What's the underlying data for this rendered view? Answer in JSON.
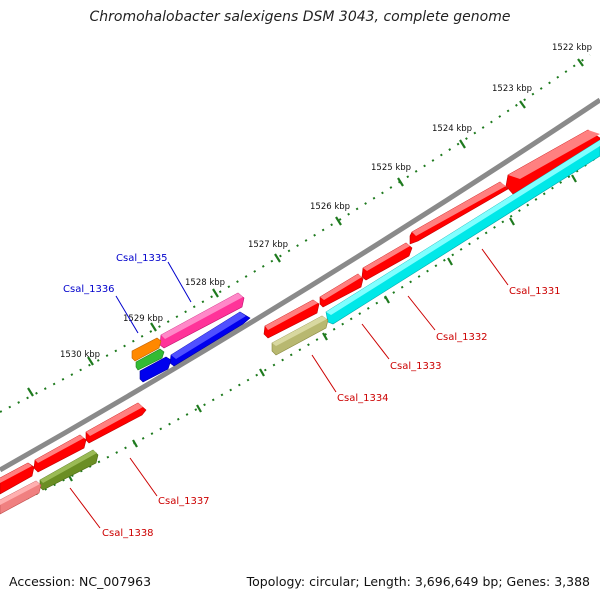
{
  "header": {
    "title": "Chromohalobacter salexigens DSM 3043, complete genome"
  },
  "footer": {
    "accession": "Accession: NC_007963",
    "summary": "Topology: circular; Length: 3,696,649 bp; Genes: 3,388"
  },
  "colors": {
    "backbone": "#8a8a8a",
    "ticks": "#1e7a1e",
    "forward_gene": "#ff0000",
    "reverse_gene": "#00e8e8",
    "forward_label": "#cc0000",
    "reverse_label": "#0000cc"
  },
  "scale_labels": [
    "1522 kbp",
    "1523 kbp",
    "1524 kbp",
    "1525 kbp",
    "1526 kbp",
    "1527 kbp",
    "1528 kbp",
    "1529 kbp",
    "1530 kbp"
  ],
  "gene_labels": [
    "Csal_1331",
    "Csal_1332",
    "Csal_1333",
    "Csal_1334",
    "Csal_1335",
    "Csal_1336",
    "Csal_1337",
    "Csal_1338"
  ]
}
